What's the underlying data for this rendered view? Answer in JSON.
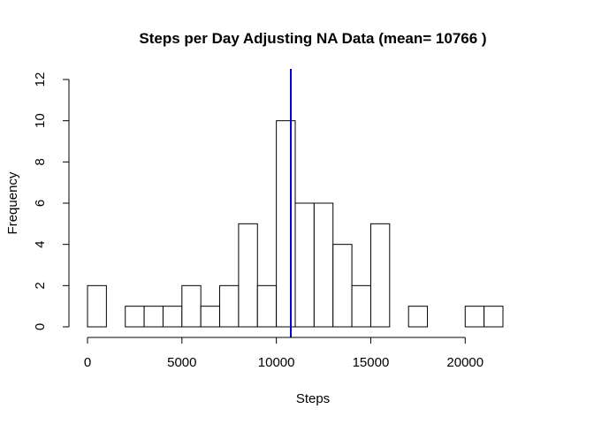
{
  "chart_data": {
    "type": "bar",
    "title": "Steps per Day Adjusting NA Data (mean= 10766 )",
    "xlabel": "Steps",
    "ylabel": "Frequency",
    "bin_width": 1000,
    "bins_start": [
      0,
      1000,
      2000,
      3000,
      4000,
      5000,
      6000,
      7000,
      8000,
      9000,
      10000,
      11000,
      12000,
      13000,
      14000,
      15000,
      16000,
      17000,
      18000,
      19000,
      20000,
      21000
    ],
    "values": [
      2,
      0,
      1,
      1,
      1,
      2,
      1,
      2,
      5,
      2,
      10,
      6,
      6,
      4,
      2,
      5,
      0,
      1,
      0,
      0,
      1,
      1
    ],
    "xlim": [
      0,
      22000
    ],
    "ylim": [
      0,
      12
    ],
    "x_ticks": [
      0,
      5000,
      10000,
      15000,
      20000
    ],
    "x_tick_labels": [
      "0",
      "5000",
      "10000",
      "15000",
      "20000"
    ],
    "y_ticks": [
      0,
      2,
      4,
      6,
      8,
      10,
      12
    ],
    "y_tick_labels": [
      "0",
      "2",
      "4",
      "6",
      "8",
      "10",
      "12"
    ],
    "mean_line": {
      "value": 10766,
      "color": "#0000cd"
    },
    "grid": false,
    "colors": {
      "bar_fill": "#ffffff",
      "bar_stroke": "#000000"
    }
  }
}
